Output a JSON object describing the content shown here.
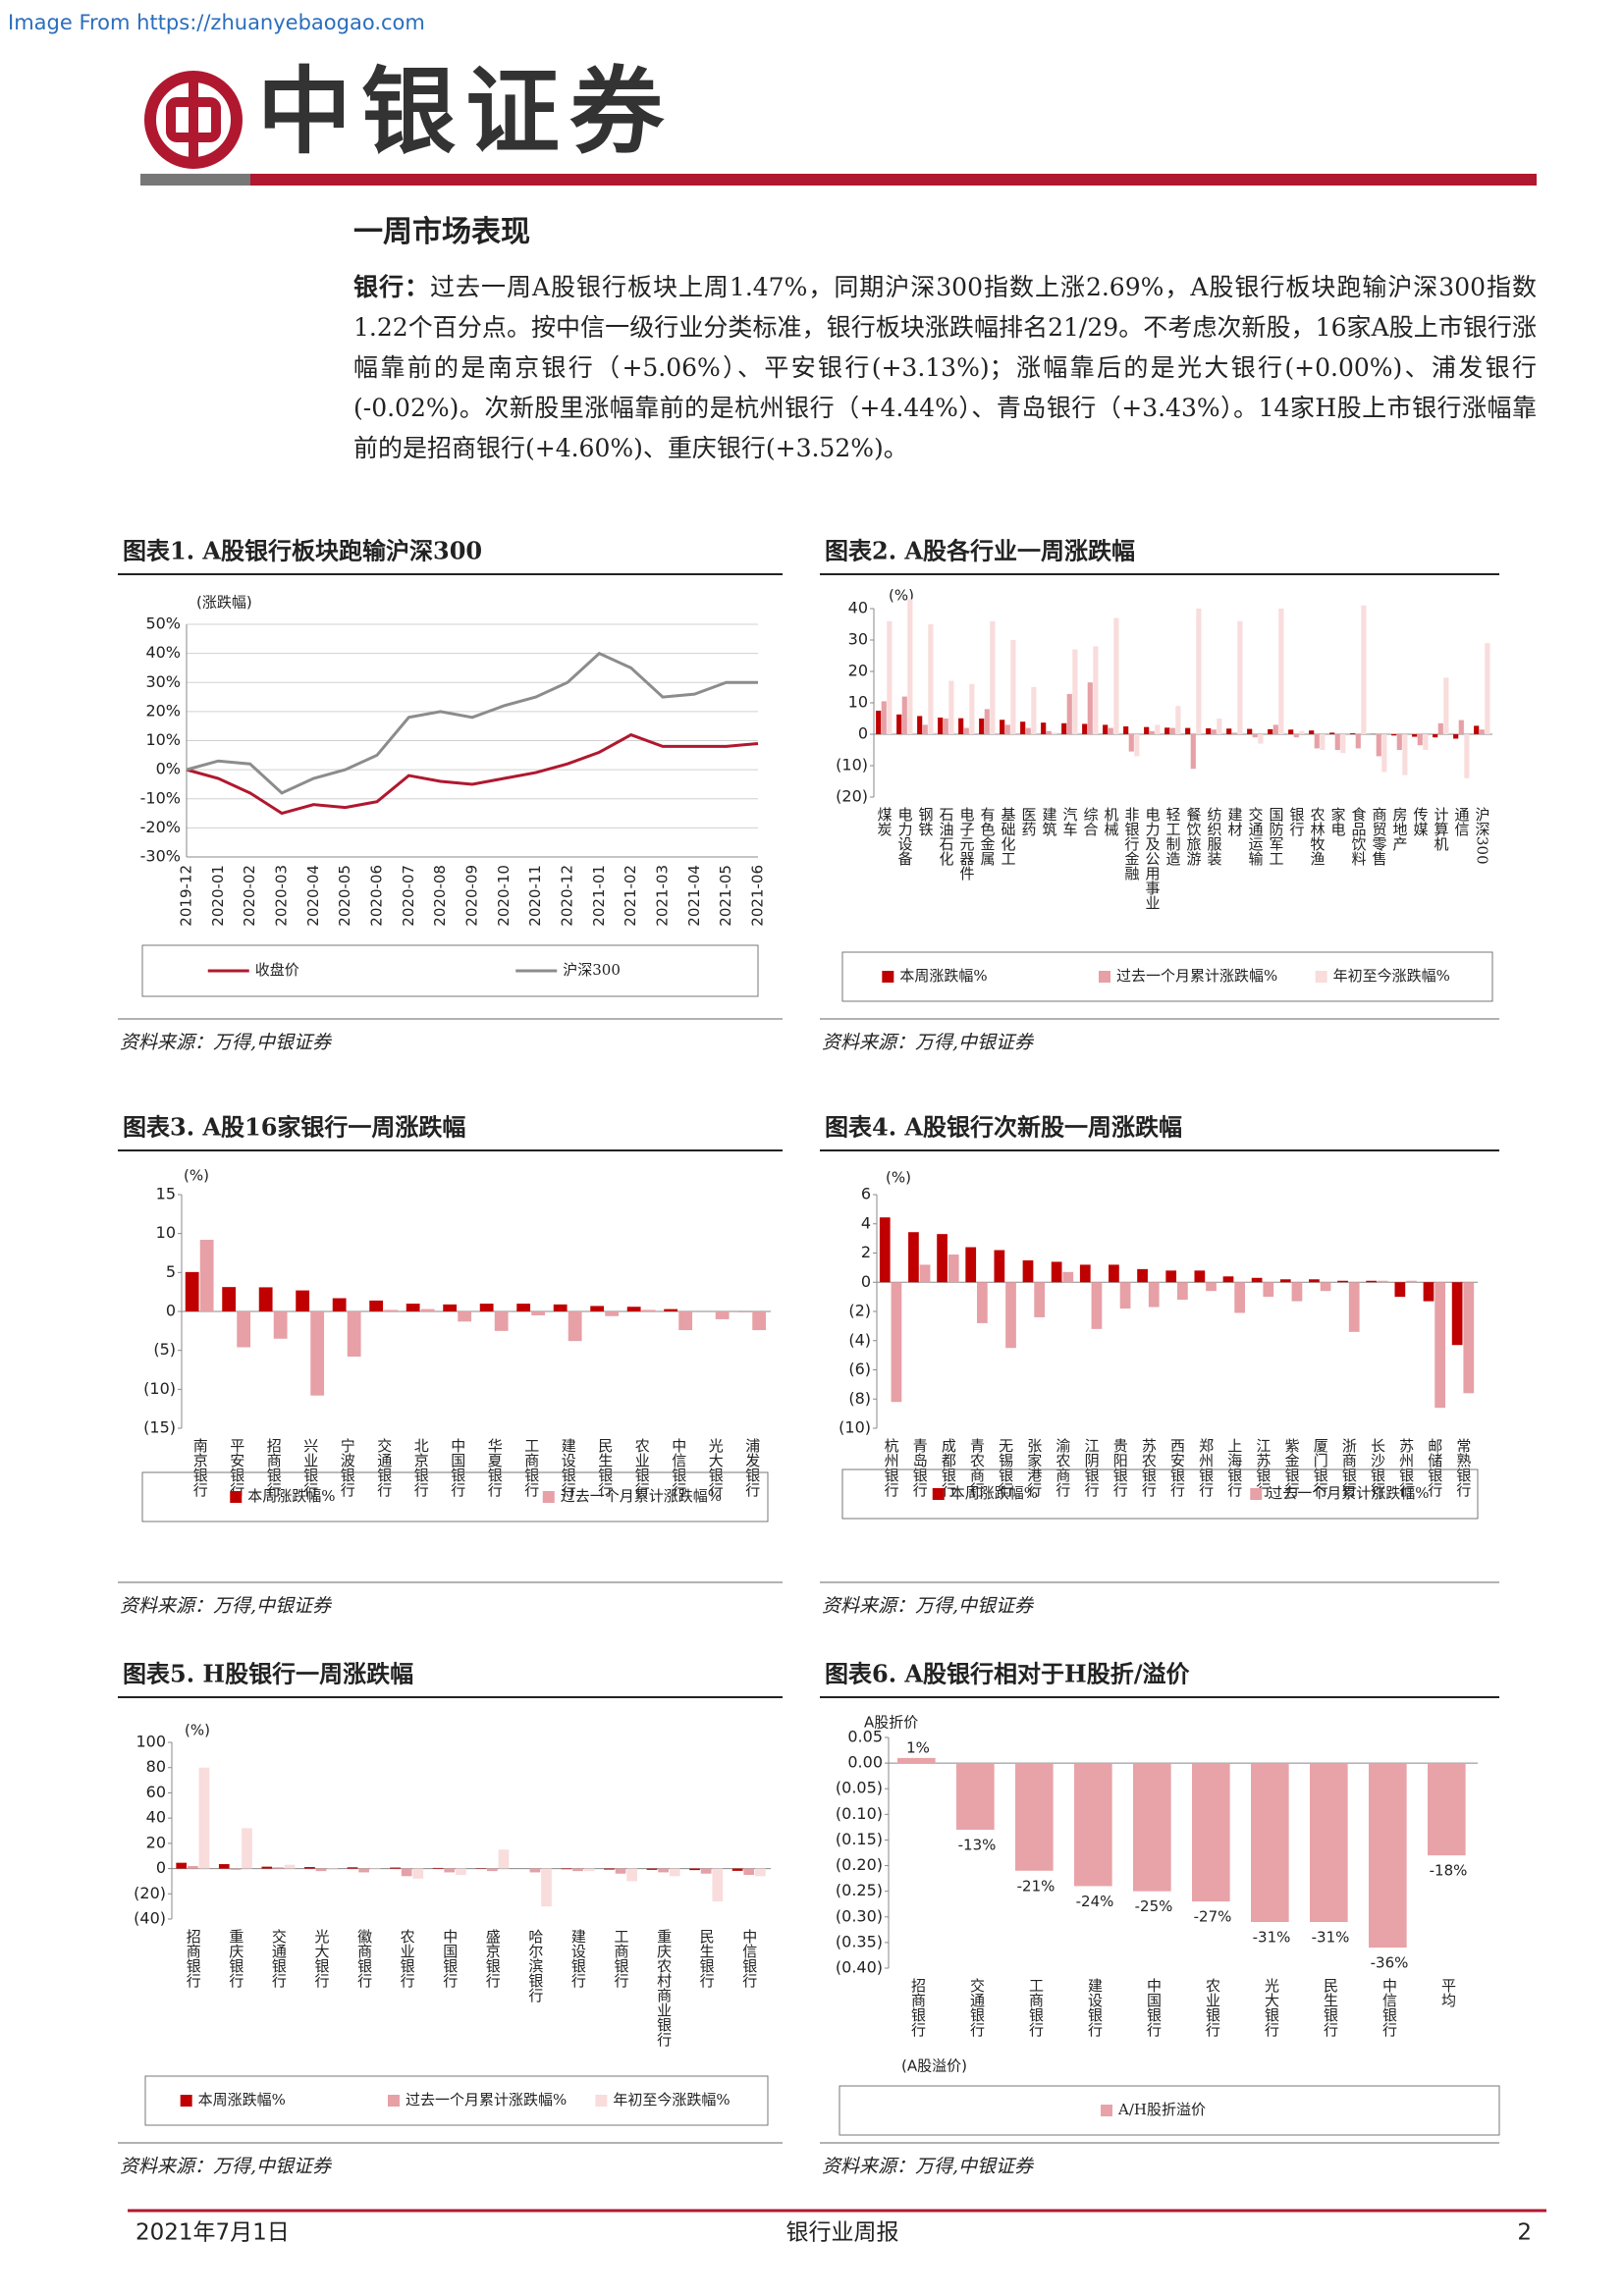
{
  "header": {
    "watermark": "Image From https://zhuanyebaogao.com",
    "brand": "中银证券"
  },
  "section_title": "一周市场表现",
  "paragraph": {
    "lead": "银行：",
    "text": "过去一周A股银行板块上周1.47%，同期沪深300指数上涨2.69%，A股银行板块跑输沪深300指数1.22个百分点。按中信一级行业分类标准，银行板块涨跌幅排名21/29。不考虑次新股，16家A股上市银行涨幅靠前的是南京银行（+5.06%）、平安银行(+3.13%)；涨幅靠后的是光大银行(+0.00%)、浦发银行(-0.02%)。次新股里涨幅靠前的是杭州银行（+4.44%）、青岛银行（+3.43%）。14家H股上市银行涨幅靠前的是招商银行(+4.60%)、重庆银行(+3.52%)。"
  },
  "chart_data": [
    {
      "type": "line",
      "title": "图表1. A股银行板块跑输沪深300",
      "source": "资料来源：万得,中银证券",
      "y_label": "(涨跌幅)",
      "legend": "bottom",
      "grid": true,
      "categories": [
        "2019-12",
        "2020-01",
        "2020-02",
        "2020-03",
        "2020-04",
        "2020-05",
        "2020-06",
        "2020-07",
        "2020-08",
        "2020-09",
        "2020-10",
        "2020-11",
        "2020-12",
        "2021-01",
        "2021-02",
        "2021-03",
        "2021-04",
        "2021-05",
        "2021-06"
      ],
      "series": [
        {
          "name": "收盘价",
          "color": "#b0182f",
          "values": [
            0,
            -3,
            -8,
            -15,
            -12,
            -13,
            -11,
            -2,
            -4,
            -5,
            -3,
            -1,
            2,
            6,
            12,
            8,
            8,
            8,
            9
          ]
        },
        {
          "name": "沪深300",
          "color": "#8c8c8c",
          "values": [
            0,
            3,
            2,
            -8,
            -3,
            0,
            5,
            18,
            20,
            18,
            22,
            25,
            30,
            40,
            35,
            25,
            26,
            30,
            30
          ]
        }
      ],
      "ylim": [
        -30,
        50
      ],
      "yticks": [
        {
          "value": 50,
          "label": "50%"
        },
        {
          "value": 40,
          "label": "40%"
        },
        {
          "value": 30,
          "label": "30%"
        },
        {
          "value": 20,
          "label": "20%"
        },
        {
          "value": 10,
          "label": "10%"
        },
        {
          "value": 0,
          "label": "0%"
        },
        {
          "value": -10,
          "label": "-10%"
        },
        {
          "value": -20,
          "label": "-20%"
        },
        {
          "value": -30,
          "label": "-30%"
        }
      ]
    },
    {
      "type": "bar",
      "title": "图表2. A股各行业一周涨跌幅",
      "source": "资料来源：万得,中银证券",
      "y_label": "(%)",
      "legend": "bottom",
      "grid": false,
      "categories": [
        "煤炭",
        "电力设备",
        "钢铁",
        "石油石化",
        "电子元器件",
        "有色金属",
        "基础化工",
        "医药",
        "建筑",
        "汽车",
        "综合",
        "机械",
        "非银行金融",
        "电力及公用事业",
        "轻工制造",
        "餐饮旅游",
        "纺织服装",
        "建材",
        "交通运输",
        "国防军工",
        "银行",
        "农林牧渔",
        "家电",
        "食品饮料",
        "商贸零售",
        "房地产",
        "传媒",
        "计算机",
        "通信",
        "沪深300"
      ],
      "series": [
        {
          "name": "本周涨跌幅%",
          "color": "#c00000",
          "values": [
            7.5,
            6.3,
            5.8,
            5.3,
            5.1,
            5.0,
            4.6,
            4.0,
            3.7,
            3.5,
            3.3,
            3.0,
            2.5,
            2.3,
            2.1,
            2.0,
            1.9,
            1.8,
            1.7,
            1.6,
            1.47,
            1.2,
            0.5,
            0.3,
            0.1,
            -0.4,
            -0.8,
            -1.0,
            -1.4,
            2.69
          ]
        },
        {
          "name": "过去一个月累计涨跌幅%",
          "color": "#e6a0a6",
          "values": [
            10.5,
            12,
            3,
            5,
            2,
            8,
            3,
            2,
            1,
            12.8,
            16.5,
            2,
            -5.5,
            1,
            2,
            -11,
            1.5,
            0.5,
            -1,
            3,
            -1,
            -4.5,
            -5,
            -4.5,
            -7,
            -5,
            -3.5,
            3.5,
            4.5,
            1.5
          ]
        },
        {
          "name": "年初至今涨跌幅%",
          "color": "#f9dcdc",
          "values": [
            36,
            43,
            35,
            17,
            16,
            36,
            30,
            15,
            0.5,
            27,
            28,
            37,
            -7,
            3,
            9,
            40,
            5,
            36,
            -3,
            40,
            1,
            -5,
            -6,
            41,
            -12,
            -13,
            -5,
            18,
            -14,
            29
          ]
        }
      ],
      "ylim": [
        -20,
        40
      ],
      "yticks": [
        40,
        30,
        20,
        10,
        0,
        {
          "value": -10,
          "label": "(10)"
        },
        {
          "value": -20,
          "label": "(20)"
        }
      ]
    },
    {
      "type": "bar",
      "title": "图表3. A股16家银行一周涨跌幅",
      "source": "资料来源：万得,中银证券",
      "y_label": "(%)",
      "legend": "bottom",
      "grid": false,
      "categories": [
        "南京银行",
        "平安银行",
        "招商银行",
        "兴业银行",
        "宁波银行",
        "交通银行",
        "北京银行",
        "中国银行",
        "华夏银行",
        "工商银行",
        "建设银行",
        "民生银行",
        "农业银行",
        "中信银行",
        "光大银行",
        "浦发银行"
      ],
      "series": [
        {
          "name": "本周涨跌幅%",
          "color": "#c00000",
          "values": [
            5.06,
            3.13,
            3.1,
            2.7,
            1.7,
            1.4,
            1.0,
            0.9,
            1.0,
            1.0,
            0.9,
            0.7,
            0.6,
            0.3,
            0.0,
            -0.02
          ]
        },
        {
          "name": "过去一个月累计涨跌幅%",
          "color": "#e6a0a6",
          "values": [
            9.2,
            -4.6,
            -3.5,
            -10.8,
            -5.8,
            0.2,
            0.3,
            -1.3,
            -2.5,
            -0.5,
            -3.8,
            -0.6,
            0.2,
            -2.4,
            -1.0,
            -2.4
          ]
        }
      ],
      "ylim": [
        -15,
        15
      ],
      "yticks": [
        15,
        10,
        5,
        0,
        {
          "value": -5,
          "label": "(5)"
        },
        {
          "value": -10,
          "label": "(10)"
        },
        {
          "value": -15,
          "label": "(15)"
        }
      ]
    },
    {
      "type": "bar",
      "title": "图表4. A股银行次新股一周涨跌幅",
      "source": "资料来源：万得,中银证券",
      "y_label": "(%)",
      "legend": "bottom",
      "grid": false,
      "categories": [
        "杭州银行",
        "青岛银行",
        "成都银行",
        "青农商行",
        "无锡银行",
        "张家港行",
        "渝农商行",
        "江阴银行",
        "贵阳银行",
        "苏农银行",
        "西安银行",
        "郑州银行",
        "上海银行",
        "江苏银行",
        "紫金银行",
        "厦门银行",
        "浙商银行",
        "长沙银行",
        "苏州银行",
        "邮储银行",
        "常熟银行"
      ],
      "series": [
        {
          "name": "本周涨跌幅%",
          "color": "#c00000",
          "values": [
            4.44,
            3.43,
            3.3,
            2.4,
            2.2,
            1.5,
            1.4,
            1.2,
            1.2,
            0.9,
            0.8,
            0.8,
            0.4,
            0.3,
            0.2,
            0.2,
            0.1,
            0.1,
            -1.0,
            -1.3,
            -4.3
          ]
        },
        {
          "name": "过去一个月累计涨跌幅%",
          "color": "#e6a0a6",
          "values": [
            -8.2,
            1.2,
            1.9,
            -2.8,
            -4.5,
            -2.4,
            0.7,
            -3.2,
            -1.8,
            -1.7,
            -1.2,
            -0.6,
            -2.1,
            -1.0,
            -1.3,
            -0.6,
            -3.4,
            0.1,
            0.1,
            -8.6,
            -7.6
          ]
        }
      ],
      "ylim": [
        -10,
        6
      ],
      "yticks": [
        6,
        4,
        2,
        0,
        {
          "value": -2,
          "label": "(2)"
        },
        {
          "value": -4,
          "label": "(4)"
        },
        {
          "value": -6,
          "label": "(6)"
        },
        {
          "value": -8,
          "label": "(8)"
        },
        {
          "value": -10,
          "label": "(10)"
        }
      ]
    },
    {
      "type": "bar",
      "title": "图表5. H股银行一周涨跌幅",
      "source": "资料来源：万得,中银证券",
      "y_label": "(%)",
      "legend": "bottom",
      "grid": false,
      "categories": [
        "招商银行",
        "重庆银行",
        "交通银行",
        "光大银行",
        "徽商银行",
        "农业银行",
        "中国银行",
        "盛京银行",
        "哈尔滨银行",
        "建设银行",
        "工商银行",
        "重庆农村商业银行",
        "民生银行",
        "中信银行"
      ],
      "series": [
        {
          "name": "本周涨跌幅%",
          "color": "#c00000",
          "values": [
            4.6,
            3.52,
            1.5,
            1.2,
            1.0,
            0.8,
            0.5,
            0.3,
            0,
            -0.5,
            -0.8,
            -1.0,
            -1.2,
            -1.8
          ]
        },
        {
          "name": "过去一个月累计涨跌幅%",
          "color": "#e6a0a6",
          "values": [
            2,
            -1,
            1,
            -2,
            -3,
            -6,
            -3,
            -2,
            -3,
            -2,
            -4,
            -3,
            -4,
            -5
          ]
        },
        {
          "name": "年初至今涨跌幅%",
          "color": "#f9dcdc",
          "values": [
            80,
            32,
            3,
            -1,
            0.5,
            -8,
            -5,
            15,
            -30,
            -2,
            -10,
            -6,
            -26,
            -6
          ]
        }
      ],
      "ylim": [
        -40,
        100
      ],
      "yticks": [
        100,
        80,
        60,
        40,
        20,
        0,
        {
          "value": -20,
          "label": "(20)"
        },
        {
          "value": -40,
          "label": "(40)"
        }
      ]
    },
    {
      "type": "bar",
      "title": "图表6. A股银行相对于H股折/溢价",
      "source": "资料来源：万得,中银证券",
      "y_label": "A股折价",
      "y_label_bottom": "(A股溢价)",
      "legend": "bottom",
      "grid": false,
      "categories": [
        "招商银行",
        "交通银行",
        "工商银行",
        "建设银行",
        "中国银行",
        "农业银行",
        "光大银行",
        "民生银行",
        "中信银行",
        "平均"
      ],
      "series": [
        {
          "name": "A/H股折溢价",
          "color": "#e8a3a8",
          "values": [
            0.01,
            -0.13,
            -0.21,
            -0.24,
            -0.25,
            -0.27,
            -0.31,
            -0.31,
            -0.36,
            -0.18
          ],
          "value_labels": [
            "1%",
            "-13%",
            "-21%",
            "-24%",
            "-25%",
            "-27%",
            "-31%",
            "-31%",
            "-36%",
            "-18%"
          ]
        }
      ],
      "ylim": [
        -0.4,
        0.05
      ],
      "yticks": [
        0.05,
        {
          "value": 0,
          "label": "0.00"
        },
        {
          "value": -0.05,
          "label": "(0.05)"
        },
        {
          "value": -0.1,
          "label": "(0.10)"
        },
        {
          "value": -0.15,
          "label": "(0.15)"
        },
        {
          "value": -0.2,
          "label": "(0.20)"
        },
        {
          "value": -0.25,
          "label": "(0.25)"
        },
        {
          "value": -0.3,
          "label": "(0.30)"
        },
        {
          "value": -0.35,
          "label": "(0.35)"
        },
        {
          "value": -0.4,
          "label": "(0.40)"
        }
      ]
    }
  ],
  "footer": {
    "date": "2021年7月1日",
    "report": "银行业周报",
    "page": "2"
  }
}
